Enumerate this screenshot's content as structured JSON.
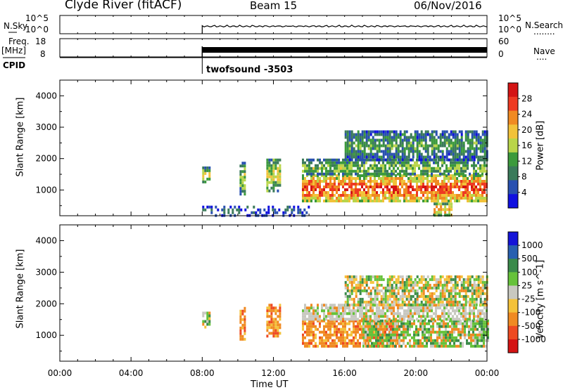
{
  "header": {
    "station": "Clyde River (fitACF)",
    "beam": "Beam 15",
    "date": "06/Nov/2016"
  },
  "left_labels": {
    "nsky": "N.Sky",
    "freq_line1": "Freq.",
    "freq_line2": "[MHz]",
    "cpid": "CPID"
  },
  "right_labels": {
    "nsearch": "N.Search",
    "nsearch_dots": "........",
    "nave": "Nave",
    "nave_dots": "...."
  },
  "noise_panel": {
    "left_ticks": [
      "10^5",
      "10^0"
    ],
    "right_ticks": [
      "10^5",
      "10^0"
    ]
  },
  "freq_panel": {
    "left_ticks": [
      "18",
      "8"
    ],
    "right_ticks": [
      "60",
      "0"
    ]
  },
  "cpid_panel": {
    "label": "twofsound -3503"
  },
  "colors": {
    "power": [
      "#1010e0",
      "#2850b0",
      "#3a7a5a",
      "#3c9a3c",
      "#b9d54a",
      "#f2c23a",
      "#f08a22",
      "#ee3a22",
      "#d41414"
    ],
    "velocity": [
      "#1414d8",
      "#2860b0",
      "#3a8a4a",
      "#66c23a",
      "#c8c8c0",
      "#f4c23a",
      "#f08a22",
      "#ee4a22",
      "#d41414"
    ]
  },
  "chart_data": [
    {
      "type": "heatmap",
      "name": "power",
      "x_ticks": [
        "00:00",
        "04:00",
        "08:00",
        "12:00",
        "16:00",
        "20:00",
        "00:00"
      ],
      "x_hours": [
        0,
        4,
        8,
        12,
        16,
        20,
        24
      ],
      "ylabel": "Slant Range [km]",
      "y_ticks": [
        1000,
        2000,
        3000,
        4000
      ],
      "ylim": [
        180,
        4500
      ],
      "xlim": [
        0,
        24
      ],
      "colorbar": {
        "label": "Power [dB]",
        "ticks": [
          4,
          8,
          12,
          16,
          20,
          24,
          28
        ],
        "range": [
          0,
          32
        ]
      },
      "echo_regions": [
        {
          "t0": 8.0,
          "t1": 8.4,
          "r0": 1250,
          "r1": 1750,
          "level": 0.55
        },
        {
          "t0": 10.1,
          "t1": 10.4,
          "r0": 900,
          "r1": 1900,
          "level": 0.5
        },
        {
          "t0": 11.6,
          "t1": 12.4,
          "r0": 950,
          "r1": 2000,
          "level": 0.55
        },
        {
          "t0": 13.6,
          "t1": 24.0,
          "r0": 650,
          "r1": 1500,
          "level": 0.88
        },
        {
          "t0": 13.6,
          "t1": 24.0,
          "r0": 1500,
          "r1": 2000,
          "level": 0.45
        },
        {
          "t0": 16.0,
          "t1": 24.0,
          "r0": 2000,
          "r1": 2900,
          "level": 0.35
        },
        {
          "t0": 8.0,
          "t1": 14.0,
          "r0": 200,
          "r1": 500,
          "level": 0.2
        },
        {
          "t0": 21.0,
          "t1": 22.0,
          "r0": 200,
          "r1": 600,
          "level": 0.7
        }
      ]
    },
    {
      "type": "heatmap",
      "name": "velocity",
      "x_ticks": [
        "00:00",
        "04:00",
        "08:00",
        "12:00",
        "16:00",
        "20:00",
        "00:00"
      ],
      "x_hours": [
        0,
        4,
        8,
        12,
        16,
        20,
        24
      ],
      "xlabel": "Time UT",
      "ylabel": "Slant Range [km]",
      "y_ticks": [
        1000,
        2000,
        3000,
        4000
      ],
      "ylim": [
        180,
        4500
      ],
      "xlim": [
        0,
        24
      ],
      "colorbar": {
        "label": "Velocity [m s^-1]",
        "ticks": [
          "1000",
          "500",
          "100",
          "25",
          "-25",
          "-100",
          "-500",
          "-1000"
        ]
      },
      "echo_regions": [
        {
          "t0": 8.0,
          "t1": 8.4,
          "r0": 1250,
          "r1": 1750,
          "level": "mixed"
        },
        {
          "t0": 10.1,
          "t1": 10.4,
          "r0": 900,
          "r1": 1900,
          "level": "away"
        },
        {
          "t0": 11.6,
          "t1": 12.4,
          "r0": 950,
          "r1": 2000,
          "level": "away"
        },
        {
          "t0": 13.6,
          "t1": 19.0,
          "r0": 650,
          "r1": 1500,
          "level": "away"
        },
        {
          "t0": 17.0,
          "t1": 24.0,
          "r0": 650,
          "r1": 1500,
          "level": "toward"
        },
        {
          "t0": 13.6,
          "t1": 24.0,
          "r0": 1500,
          "r1": 2000,
          "level": "ground"
        },
        {
          "t0": 16.0,
          "t1": 24.0,
          "r0": 2000,
          "r1": 2900,
          "level": "mixed"
        }
      ]
    }
  ]
}
